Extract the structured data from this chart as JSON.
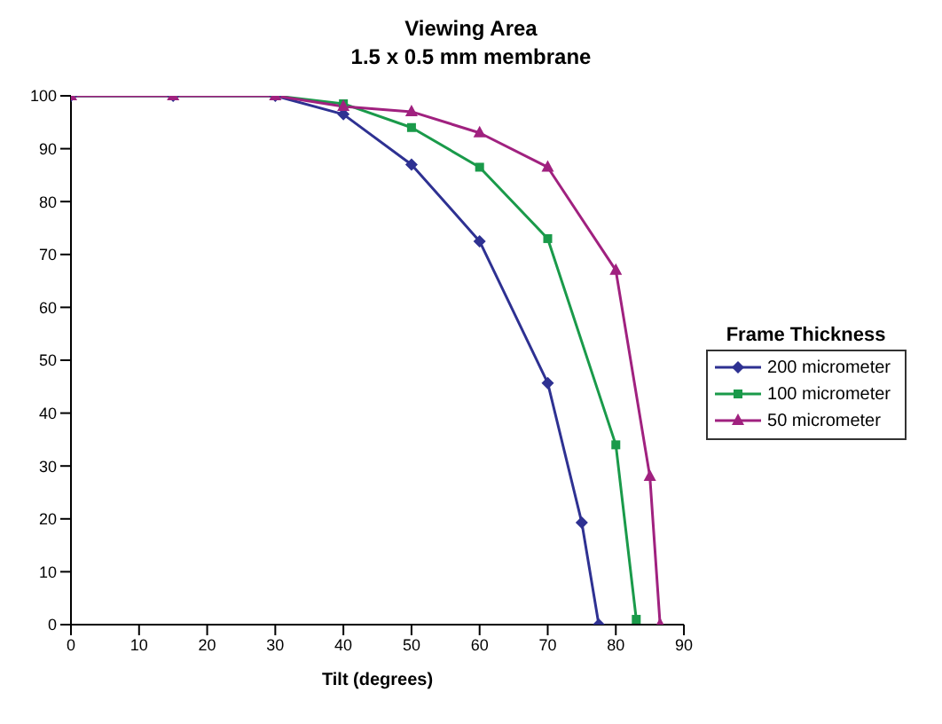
{
  "chart_data": {
    "type": "line",
    "title": "Viewing Area",
    "subtitle": "1.5 x 0.5 mm membrane",
    "xlabel": "Tilt (degrees)",
    "legend_title": "Frame Thickness",
    "legend": "right",
    "grid": false,
    "xlim": [
      0,
      90
    ],
    "xticks": [
      0,
      10,
      20,
      30,
      40,
      50,
      60,
      70,
      80,
      90
    ],
    "ylim": [
      0,
      100
    ],
    "yticks": [
      0,
      10,
      20,
      30,
      40,
      50,
      60,
      70,
      80,
      90,
      100
    ],
    "series": [
      {
        "name": "200 micrometer",
        "color": "#2e3192",
        "marker": "diamond",
        "x": [
          0,
          15,
          30,
          40,
          50,
          60,
          70,
          75,
          77.5
        ],
        "values": [
          100,
          100,
          100,
          96.5,
          87,
          72.5,
          45.7,
          19.3,
          0
        ]
      },
      {
        "name": "100 micrometer",
        "color": "#1a9a4a",
        "marker": "square",
        "x": [
          0,
          15,
          30,
          40,
          50,
          60,
          70,
          80,
          83
        ],
        "values": [
          100,
          100,
          100,
          98.5,
          94,
          86.5,
          73,
          34,
          1
        ]
      },
      {
        "name": "50 micrometer",
        "color": "#a0217f",
        "marker": "triangle",
        "x": [
          0,
          15,
          30,
          40,
          50,
          60,
          70,
          80,
          85,
          86.5
        ],
        "values": [
          100,
          100,
          100,
          98,
          97,
          93,
          86.5,
          67,
          28,
          0
        ]
      }
    ]
  }
}
